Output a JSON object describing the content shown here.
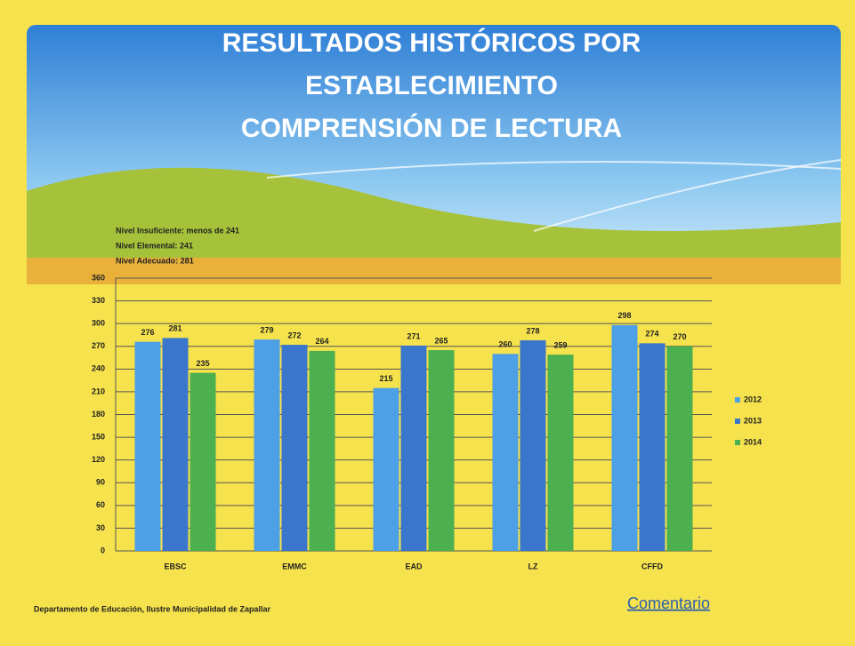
{
  "chart_data": {
    "type": "bar",
    "title": [
      "RESULTADOS HISTÓRICOS POR",
      "ESTABLECIMIENTO",
      "COMPRENSIÓN DE LECTURA"
    ],
    "notes": [
      "Nivel Insuficiente: menos de 241",
      "Nivel Elemental: 241",
      "Nivel Adecuado: 281"
    ],
    "categories": [
      "EBSC",
      "EMMC",
      "EAD",
      "LZ",
      "CFFD"
    ],
    "series": [
      {
        "name": "2012",
        "color": "#4d9fe6",
        "values": [
          276,
          279,
          215,
          260,
          298
        ]
      },
      {
        "name": "2013",
        "color": "#3a76cc",
        "values": [
          281,
          272,
          271,
          278,
          274
        ]
      },
      {
        "name": "2014",
        "color": "#4caf50",
        "values": [
          235,
          264,
          265,
          259,
          270
        ]
      }
    ],
    "ylim": [
      0,
      360
    ],
    "yticks": [
      0,
      30,
      60,
      90,
      120,
      150,
      180,
      210,
      240,
      270,
      300,
      330,
      360
    ],
    "grid": true,
    "legend": "right"
  },
  "footer": "Departamento de Educación, Ilustre Municipalidad de Zapallar",
  "link": "Comentario"
}
